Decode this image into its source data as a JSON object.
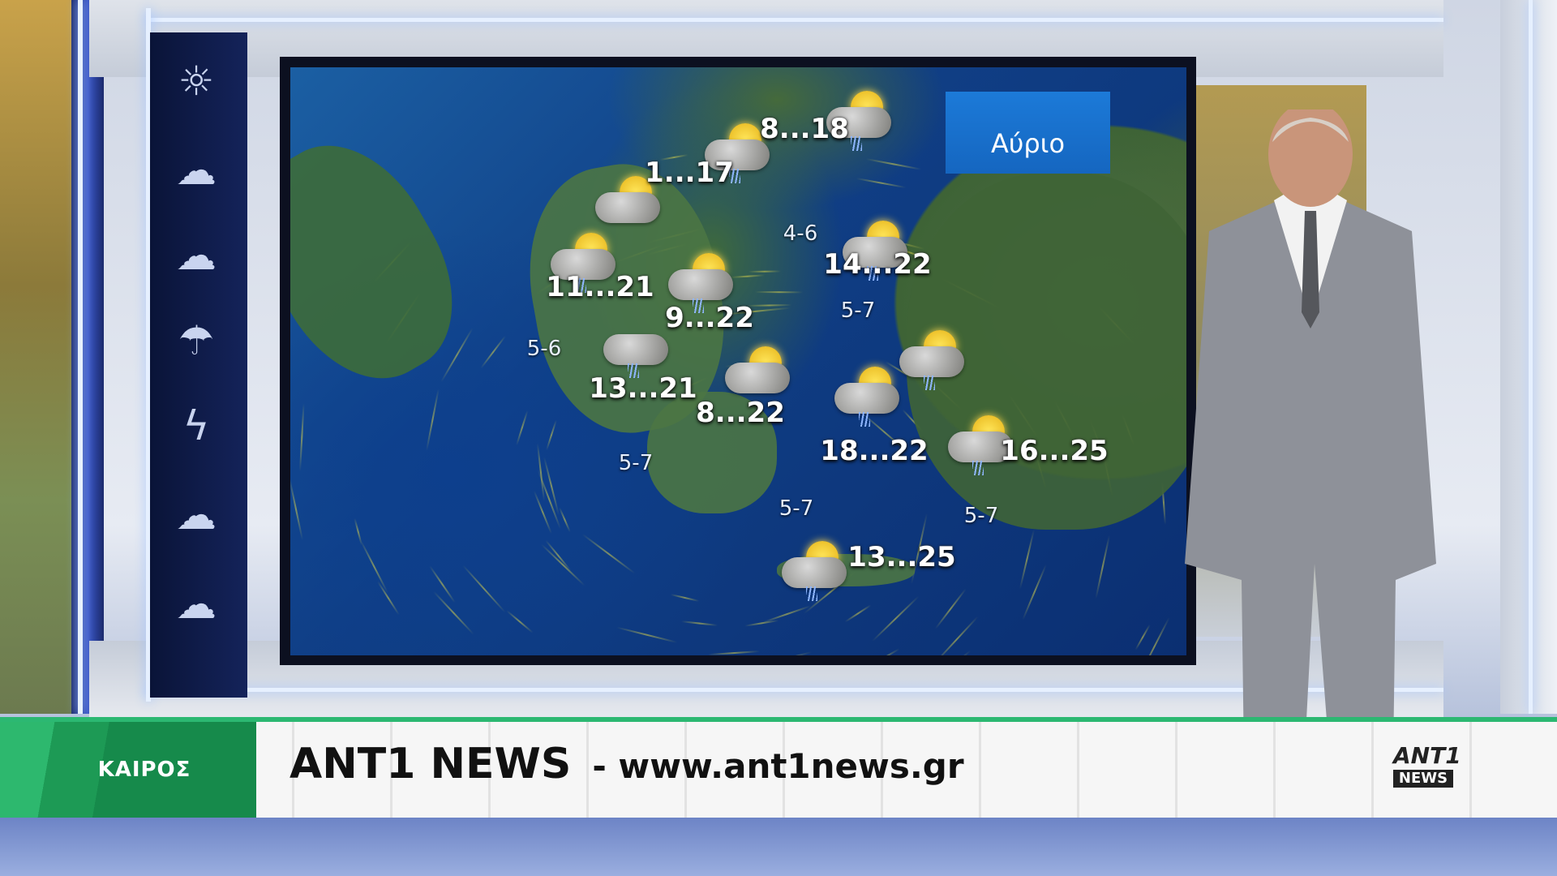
{
  "map": {
    "label": "Αύριο",
    "temperatures": [
      {
        "text": "8...18",
        "sky": "sun-cloud-rain"
      },
      {
        "text": "1...17",
        "sky": "sun-cloud-rain"
      },
      {
        "text": "11...21",
        "sky": "sun-cloud-rain"
      },
      {
        "text": "9...22",
        "sky": "sun-cloud-rain"
      },
      {
        "text": "13...21",
        "sky": "cloud-rain"
      },
      {
        "text": "8...22",
        "sky": "sun-cloud"
      },
      {
        "text": "14...22",
        "sky": "sun-cloud-rain"
      },
      {
        "text": "18...22",
        "sky": "sun-cloud-rain"
      },
      {
        "text": "16...25",
        "sky": "sun-cloud-rain"
      },
      {
        "text": "13...25",
        "sky": "sun-cloud-rain"
      }
    ],
    "winds": [
      "4-6",
      "5-7",
      "5-6",
      "5-7",
      "5-7",
      "5-7"
    ],
    "extra_icons": [
      "sun-cloud",
      "sun-cloud-rain",
      "sun-cloud-rain"
    ]
  },
  "side_icons": [
    "sun-icon",
    "sun-cloud-icon",
    "cloud-icon",
    "cloud-rain-icon",
    "thunderstorm-icon",
    "clouds-icon",
    "cloud-wind-icon"
  ],
  "lower_third": {
    "section": "ΚΑΙΡΟΣ",
    "brand": "ANT1 NEWS",
    "url": "- www.ant1news.gr",
    "logo_top": "ANT1",
    "logo_bottom": "NEWS"
  },
  "colors": {
    "accent_green": "#1d9a55",
    "sea": "#103f86",
    "tomorrow_box": "#1566c0"
  }
}
